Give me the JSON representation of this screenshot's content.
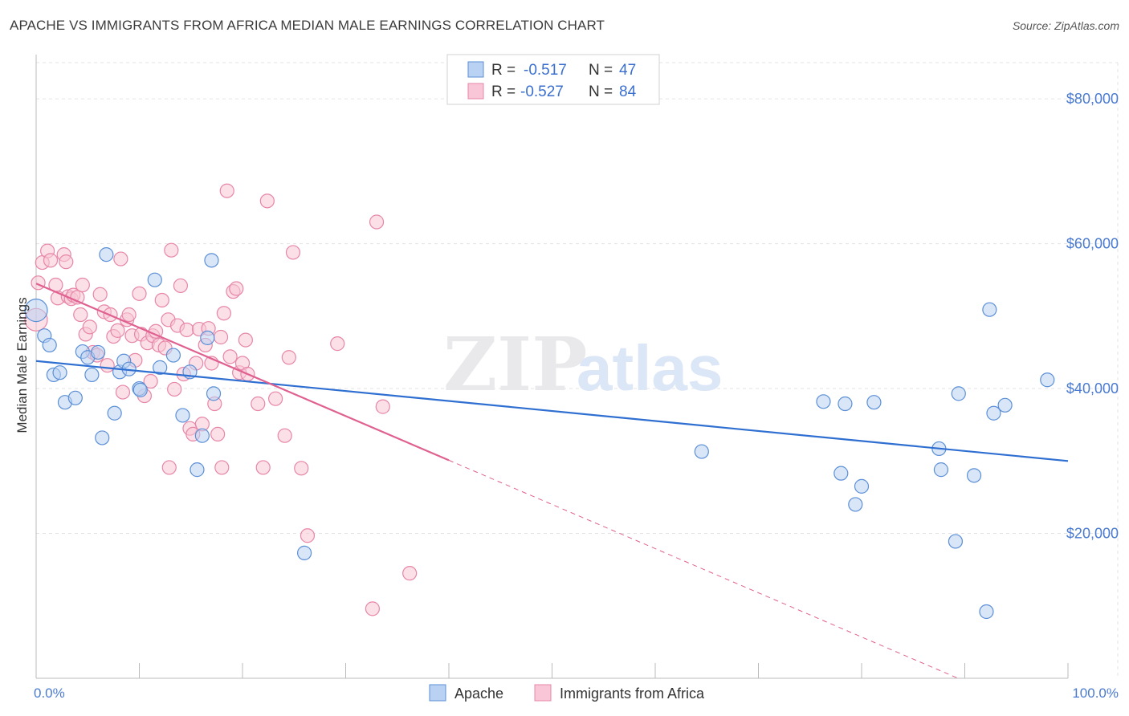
{
  "title": "APACHE VS IMMIGRANTS FROM AFRICA MEDIAN MALE EARNINGS CORRELATION CHART",
  "source": "Source: ZipAtlas.com",
  "watermark": {
    "zip": "ZIP",
    "atlas": "atlas"
  },
  "colors": {
    "apache_fill": "#b9d2f3",
    "apache_stroke": "#5b8fd6",
    "apache_line": "#2f6fd1",
    "africa_fill": "#f8c6d6",
    "africa_stroke": "#e786a7",
    "africa_line": "#e0608f",
    "grid": "#e3e3e6",
    "axis": "#bbbbbb"
  },
  "chart_data": {
    "type": "scatter",
    "ylabel": "Median Male Earnings",
    "xlim": [
      0,
      100
    ],
    "ylim": [
      0,
      85000
    ],
    "x_tick_labels": [
      "0.0%",
      "100.0%"
    ],
    "y_ticks": [
      20000,
      40000,
      60000,
      80000
    ],
    "y_tick_labels": [
      "$20,000",
      "$40,000",
      "$60,000",
      "$80,000"
    ],
    "legend": {
      "rows": [
        {
          "r_label": "R =",
          "r_value": "-0.517",
          "n_label": "N =",
          "n_value": "47"
        },
        {
          "r_label": "R =",
          "r_value": "-0.527",
          "n_label": "N =",
          "n_value": "84"
        }
      ]
    },
    "series": [
      {
        "name": "Apache",
        "trend": {
          "x0": 0,
          "y0": 43800,
          "x1": 100,
          "y1": 30000
        },
        "points": [
          [
            0,
            50800
          ],
          [
            0.8,
            47300
          ],
          [
            1.3,
            46000
          ],
          [
            1.7,
            41900
          ],
          [
            2.3,
            42200
          ],
          [
            2.8,
            38100
          ],
          [
            3.8,
            38700
          ],
          [
            4.5,
            45100
          ],
          [
            5.0,
            44300
          ],
          [
            5.4,
            41900
          ],
          [
            6.0,
            45000
          ],
          [
            6.4,
            33200
          ],
          [
            6.8,
            58500
          ],
          [
            7.6,
            36600
          ],
          [
            8.1,
            42300
          ],
          [
            8.5,
            43800
          ],
          [
            9.0,
            42700
          ],
          [
            10.0,
            40000
          ],
          [
            11.5,
            55000
          ],
          [
            12.0,
            42900
          ],
          [
            13.3,
            44600
          ],
          [
            14.2,
            36300
          ],
          [
            14.9,
            42300
          ],
          [
            15.6,
            28800
          ],
          [
            16.1,
            33500
          ],
          [
            16.6,
            47000
          ],
          [
            17.0,
            57700
          ],
          [
            17.2,
            39300
          ],
          [
            26.0,
            17300
          ],
          [
            64.5,
            31300
          ],
          [
            76.3,
            38200
          ],
          [
            78.0,
            28300
          ],
          [
            78.4,
            37900
          ],
          [
            79.4,
            24000
          ],
          [
            80.0,
            26500
          ],
          [
            81.2,
            38100
          ],
          [
            87.5,
            31700
          ],
          [
            87.7,
            28800
          ],
          [
            89.1,
            18900
          ],
          [
            89.4,
            39300
          ],
          [
            90.9,
            28000
          ],
          [
            92.1,
            9200
          ],
          [
            92.4,
            50900
          ],
          [
            92.8,
            36600
          ],
          [
            93.9,
            37700
          ],
          [
            98.0,
            41200
          ],
          [
            10.1,
            39800
          ]
        ]
      },
      {
        "name": "Immigrants from Africa",
        "trend": {
          "x0": 0,
          "y0": 54500,
          "x1": 40,
          "y1": 30100
        },
        "trend_dashed": {
          "x0": 40,
          "y0": 30100,
          "x1": 100,
          "y1": -6500
        },
        "points": [
          [
            0,
            49500
          ],
          [
            0.2,
            54600
          ],
          [
            0.6,
            57400
          ],
          [
            1.1,
            59000
          ],
          [
            1.4,
            57700
          ],
          [
            1.9,
            54300
          ],
          [
            2.1,
            52500
          ],
          [
            2.7,
            58500
          ],
          [
            2.9,
            57500
          ],
          [
            3.1,
            52700
          ],
          [
            3.4,
            52400
          ],
          [
            3.6,
            52900
          ],
          [
            4.0,
            52600
          ],
          [
            4.3,
            50200
          ],
          [
            4.5,
            54300
          ],
          [
            4.8,
            47500
          ],
          [
            5.2,
            48500
          ],
          [
            5.5,
            45000
          ],
          [
            5.9,
            44600
          ],
          [
            6.2,
            53000
          ],
          [
            6.6,
            50600
          ],
          [
            6.9,
            43200
          ],
          [
            7.2,
            50200
          ],
          [
            7.5,
            47200
          ],
          [
            7.9,
            48000
          ],
          [
            8.2,
            57900
          ],
          [
            8.4,
            39500
          ],
          [
            8.8,
            49500
          ],
          [
            9.0,
            50200
          ],
          [
            9.3,
            47300
          ],
          [
            9.6,
            43900
          ],
          [
            10.0,
            53100
          ],
          [
            10.2,
            47500
          ],
          [
            10.5,
            39000
          ],
          [
            10.8,
            46300
          ],
          [
            11.1,
            41000
          ],
          [
            11.3,
            47300
          ],
          [
            11.6,
            47900
          ],
          [
            11.9,
            46000
          ],
          [
            12.2,
            52200
          ],
          [
            12.5,
            45600
          ],
          [
            12.8,
            49500
          ],
          [
            13.1,
            59100
          ],
          [
            13.4,
            39900
          ],
          [
            13.7,
            48700
          ],
          [
            14.0,
            54200
          ],
          [
            14.3,
            42000
          ],
          [
            14.6,
            48100
          ],
          [
            14.9,
            34500
          ],
          [
            15.2,
            33700
          ],
          [
            15.5,
            43500
          ],
          [
            15.8,
            48200
          ],
          [
            16.1,
            35100
          ],
          [
            16.4,
            46000
          ],
          [
            16.7,
            48300
          ],
          [
            17.0,
            43500
          ],
          [
            17.3,
            37900
          ],
          [
            17.6,
            33700
          ],
          [
            17.9,
            47100
          ],
          [
            18.2,
            50400
          ],
          [
            18.5,
            67300
          ],
          [
            18.8,
            44400
          ],
          [
            19.1,
            53400
          ],
          [
            19.4,
            53800
          ],
          [
            19.7,
            42200
          ],
          [
            20.0,
            43500
          ],
          [
            20.3,
            46700
          ],
          [
            21.5,
            37900
          ],
          [
            22.0,
            29100
          ],
          [
            22.4,
            65900
          ],
          [
            23.2,
            38600
          ],
          [
            24.1,
            33500
          ],
          [
            24.5,
            44300
          ],
          [
            24.9,
            58800
          ],
          [
            25.7,
            29000
          ],
          [
            26.3,
            19700
          ],
          [
            29.2,
            46200
          ],
          [
            32.6,
            9600
          ],
          [
            33.0,
            63000
          ],
          [
            33.6,
            37500
          ],
          [
            36.2,
            14500
          ],
          [
            20.5,
            42000
          ],
          [
            12.9,
            29100
          ],
          [
            18.0,
            29100
          ]
        ]
      }
    ]
  }
}
